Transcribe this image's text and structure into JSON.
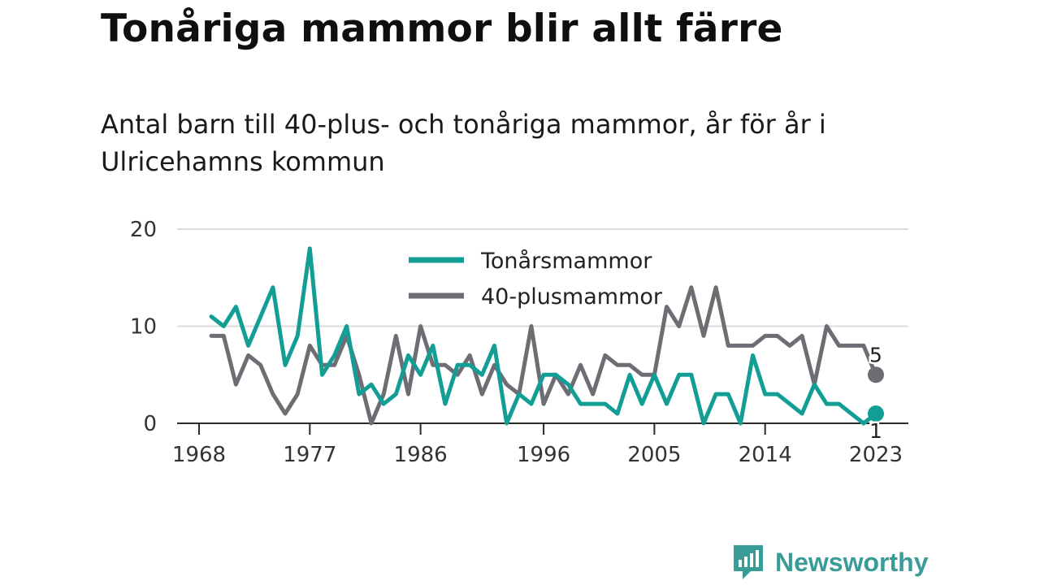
{
  "title": "Tonåriga mammor blir allt färre",
  "subtitle": "Antal barn till 40-plus- och tonåriga mammor, år för år i Ulricehamns kommun",
  "brand": {
    "name": "Newsworthy",
    "color": "#3a9c97"
  },
  "chart_data": {
    "type": "line",
    "x_ticks": [
      "1968",
      "1977",
      "1986",
      "1996",
      "2005",
      "2014",
      "2023"
    ],
    "y_ticks": [
      "0",
      "10",
      "20"
    ],
    "ylim": [
      0,
      20
    ],
    "xlim": [
      1968,
      2023
    ],
    "grid": true,
    "legend_position": "top-center",
    "x": [
      1969,
      1970,
      1971,
      1972,
      1973,
      1974,
      1975,
      1976,
      1977,
      1978,
      1979,
      1980,
      1981,
      1982,
      1983,
      1984,
      1985,
      1986,
      1987,
      1988,
      1989,
      1990,
      1991,
      1992,
      1993,
      1994,
      1995,
      1996,
      1997,
      1998,
      1999,
      2000,
      2001,
      2002,
      2003,
      2004,
      2005,
      2006,
      2007,
      2008,
      2009,
      2010,
      2011,
      2012,
      2013,
      2014,
      2015,
      2016,
      2017,
      2018,
      2019,
      2020,
      2021,
      2022,
      2023
    ],
    "series": [
      {
        "name": "Tonårsmammor",
        "color": "#129e94",
        "values": [
          11,
          10,
          12,
          8,
          11,
          14,
          6,
          9,
          18,
          5,
          7,
          10,
          3,
          4,
          2,
          3,
          7,
          5,
          8,
          2,
          6,
          6,
          5,
          8,
          0,
          3,
          2,
          5,
          5,
          4,
          2,
          2,
          2,
          1,
          5,
          2,
          5,
          2,
          5,
          5,
          0,
          3,
          3,
          0,
          7,
          3,
          3,
          2,
          1,
          4,
          2,
          2,
          1,
          0,
          1
        ],
        "end_label": "1"
      },
      {
        "name": "40-plusmammor",
        "color": "#6e6d73",
        "values": [
          9,
          9,
          4,
          7,
          6,
          3,
          1,
          3,
          8,
          6,
          6,
          9,
          5,
          0,
          3,
          9,
          3,
          10,
          6,
          6,
          5,
          7,
          3,
          6,
          4,
          3,
          10,
          2,
          5,
          3,
          6,
          3,
          7,
          6,
          6,
          5,
          5,
          12,
          10,
          14,
          9,
          14,
          8,
          8,
          8,
          9,
          9,
          8,
          9,
          4,
          10,
          8,
          8,
          8,
          5
        ],
        "end_label": "5"
      }
    ]
  }
}
